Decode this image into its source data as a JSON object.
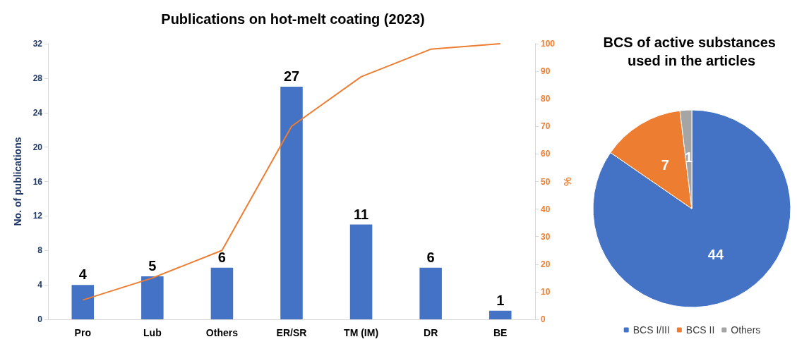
{
  "chart_data": [
    {
      "type": "bar",
      "title": "Publications on hot-melt coating (2023)",
      "ylabel": "No. of publications",
      "y2label": "%",
      "categories": [
        "Pro",
        "Lub",
        "Others",
        "ER/SR",
        "TM (IM)",
        "DR",
        "BE"
      ],
      "series": [
        {
          "type": "bar",
          "color": "#4472c4",
          "values": [
            4,
            5,
            6,
            27,
            11,
            6,
            1
          ],
          "data_labels": true
        },
        {
          "type": "line",
          "axis": "y2",
          "color": "#ed7d31",
          "values": [
            7,
            15,
            25,
            70,
            88,
            98,
            100
          ]
        }
      ],
      "ylim": [
        0,
        32
      ],
      "yticks": [
        0,
        4,
        8,
        12,
        16,
        20,
        24,
        28,
        32
      ],
      "y2lim": [
        0,
        100
      ],
      "y2ticks": [
        0,
        10,
        20,
        30,
        40,
        50,
        60,
        70,
        80,
        90,
        100
      ],
      "grid": false,
      "legend": false,
      "marker": "none"
    },
    {
      "type": "pie",
      "title": "BCS of active substances used in the articles",
      "categories": [
        "BCS I/III",
        "BCS II",
        "Others"
      ],
      "values": [
        44,
        7,
        1
      ],
      "colors": [
        "#4472c4",
        "#ed7d31",
        "#a5a5a5"
      ],
      "data_labels": true,
      "legend": "bottom"
    }
  ]
}
